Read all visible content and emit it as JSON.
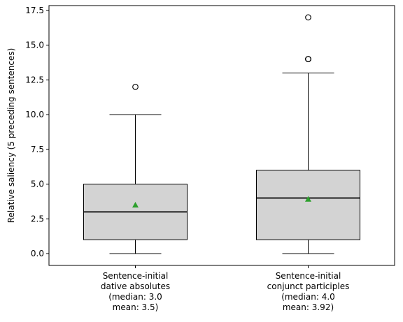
{
  "chart_data": {
    "type": "box",
    "ylabel": "Relative saliency (5 preceding sentences)",
    "ylim": [
      -0.85,
      17.85
    ],
    "y_ticks": [
      0.0,
      2.5,
      5.0,
      7.5,
      10.0,
      12.5,
      15.0,
      17.5
    ],
    "y_tick_labels": [
      "0.0",
      "2.5",
      "5.0",
      "7.5",
      "10.0",
      "12.5",
      "15.0",
      "17.5"
    ],
    "grid": false,
    "box_fill": "#d3d3d3",
    "median_color": "#000000",
    "mean_marker_color": "#2ca02c",
    "boxes": [
      {
        "label_lines": [
          "Sentence-initial",
          "dative absolutes",
          "(median: 3.0",
          "mean: 3.5)"
        ],
        "whisker_low": 0,
        "q1": 1,
        "median": 3.0,
        "q3": 5,
        "whisker_high": 10,
        "mean": 3.5,
        "outliers": [
          12
        ]
      },
      {
        "label_lines": [
          "Sentence-initial",
          "conjunct participles",
          "(median: 4.0",
          "mean: 3.92)"
        ],
        "whisker_low": 0,
        "q1": 1,
        "median": 4.0,
        "q3": 6,
        "whisker_high": 13,
        "mean": 3.92,
        "outliers": [
          14,
          14,
          14,
          17
        ]
      }
    ]
  }
}
